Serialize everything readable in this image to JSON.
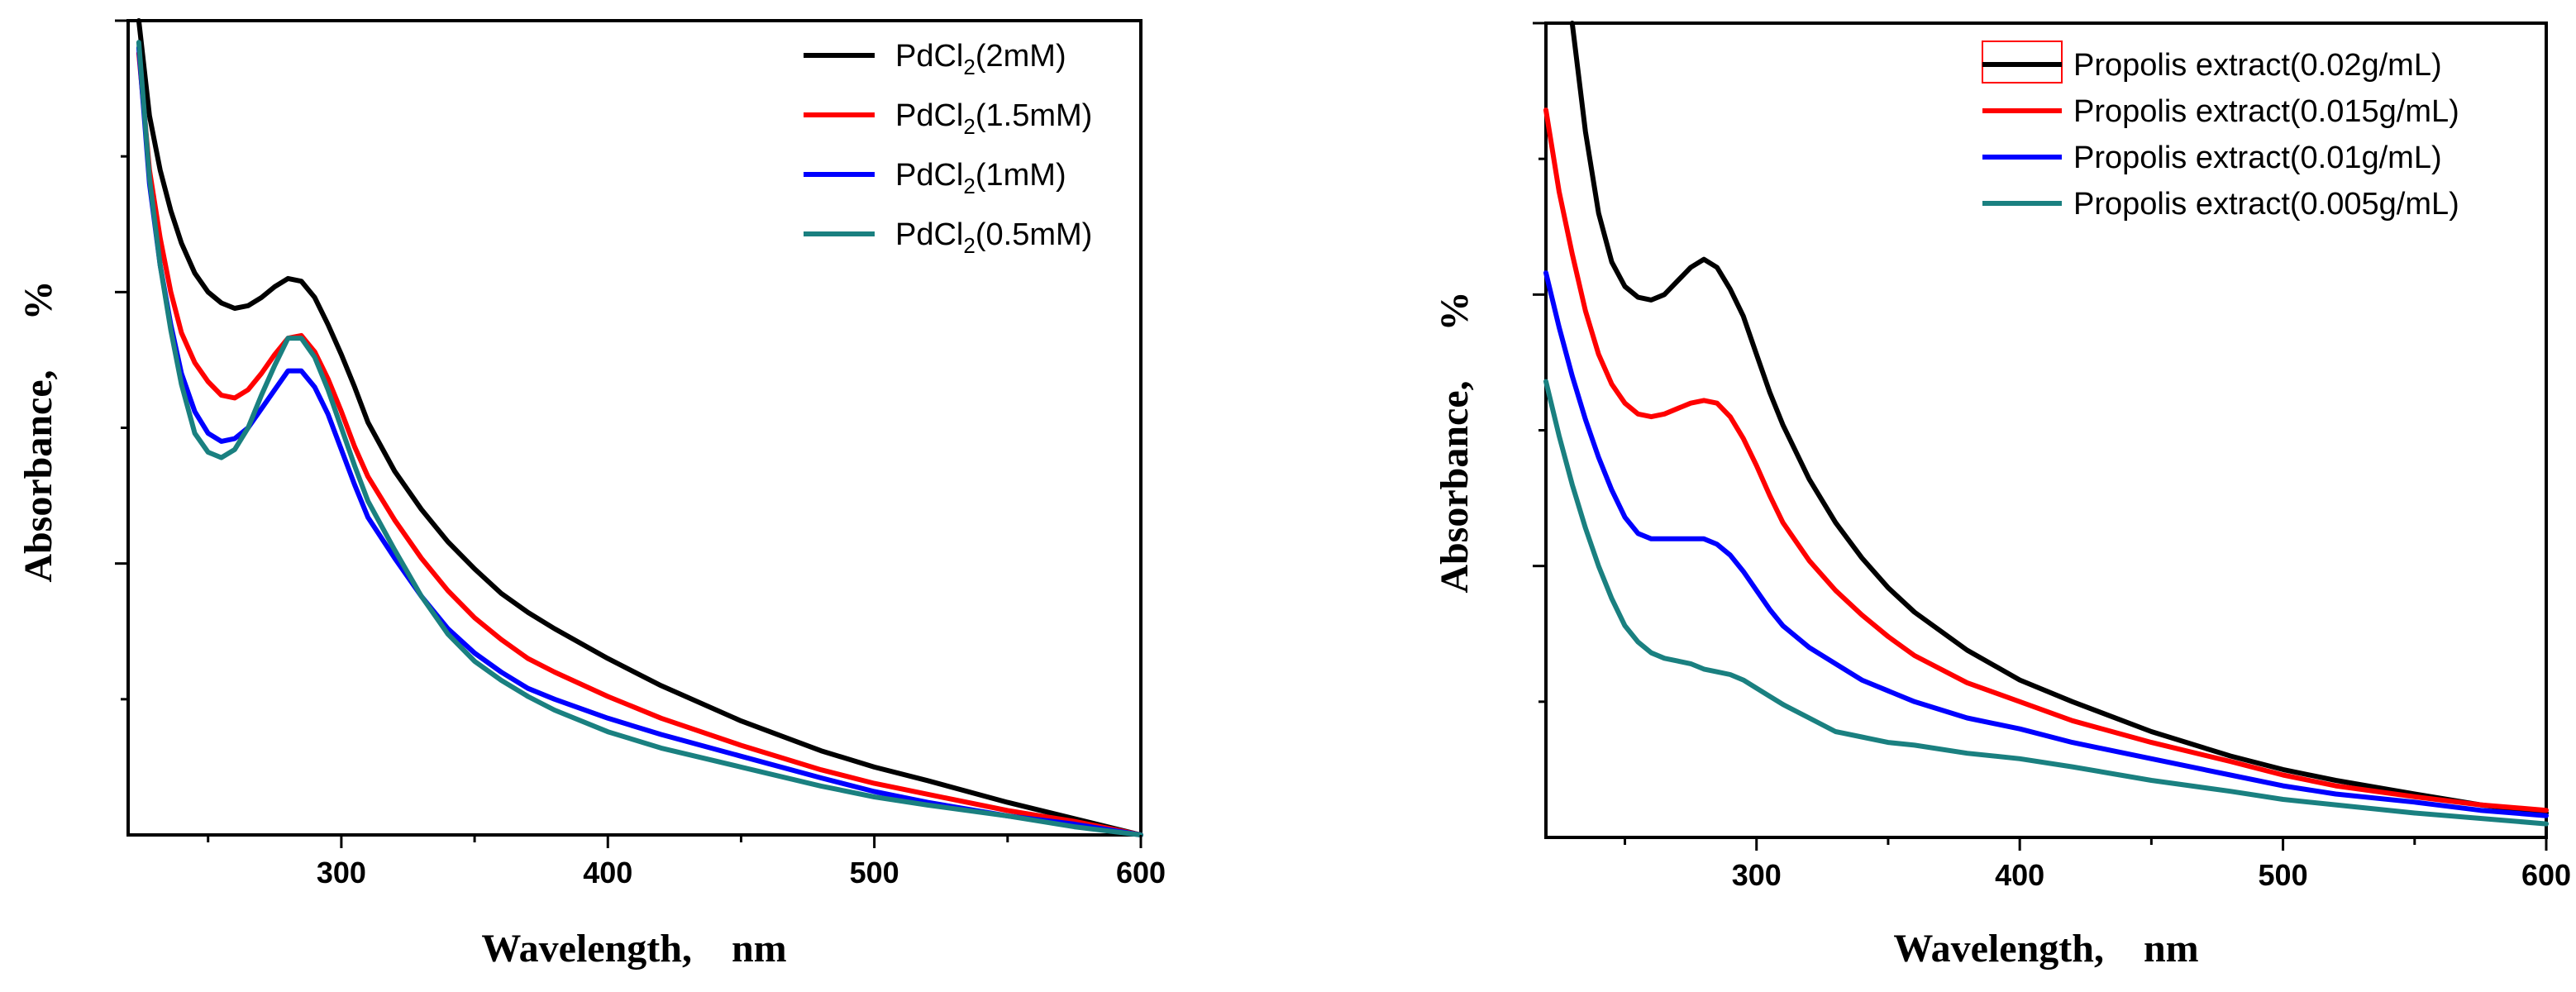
{
  "chart_data": [
    {
      "type": "line",
      "xlabel": "Wavelength,    nm",
      "ylabel": "Absorbance,     %",
      "xlim": [
        220,
        600
      ],
      "ylim": [
        0,
        3.0
      ],
      "xticks": [
        300,
        400,
        500,
        600
      ],
      "grid": false,
      "legend": "top-right",
      "series": [
        {
          "name": "PdCl2(2mM)",
          "label_main": "PdCl",
          "label_sub": "2",
          "label_tail": "(2mM)",
          "color": "#000000",
          "x": [
            224,
            228,
            232,
            236,
            240,
            245,
            250,
            255,
            260,
            265,
            270,
            275,
            280,
            285,
            290,
            295,
            300,
            305,
            310,
            320,
            330,
            340,
            350,
            360,
            370,
            380,
            400,
            420,
            450,
            480,
            500,
            520,
            550,
            575,
            600
          ],
          "y": [
            3.0,
            2.65,
            2.45,
            2.3,
            2.18,
            2.07,
            2.0,
            1.96,
            1.94,
            1.95,
            1.98,
            2.02,
            2.05,
            2.04,
            1.98,
            1.88,
            1.77,
            1.65,
            1.52,
            1.34,
            1.2,
            1.08,
            0.98,
            0.89,
            0.82,
            0.76,
            0.65,
            0.55,
            0.42,
            0.31,
            0.25,
            0.2,
            0.12,
            0.06,
            0.0
          ]
        },
        {
          "name": "PdCl2(1.5mM)",
          "label_main": "PdCl",
          "label_sub": "2",
          "label_tail": "(1.5mM)",
          "color": "#ff0000",
          "x": [
            224,
            228,
            232,
            236,
            240,
            245,
            250,
            255,
            260,
            265,
            270,
            275,
            280,
            285,
            290,
            295,
            300,
            305,
            310,
            320,
            330,
            340,
            350,
            360,
            370,
            380,
            400,
            420,
            450,
            480,
            500,
            520,
            550,
            575,
            600
          ],
          "y": [
            2.88,
            2.45,
            2.2,
            2.0,
            1.85,
            1.74,
            1.67,
            1.62,
            1.61,
            1.64,
            1.7,
            1.77,
            1.83,
            1.84,
            1.78,
            1.68,
            1.56,
            1.43,
            1.32,
            1.16,
            1.02,
            0.9,
            0.8,
            0.72,
            0.65,
            0.6,
            0.51,
            0.43,
            0.33,
            0.24,
            0.19,
            0.15,
            0.09,
            0.05,
            0.0
          ]
        },
        {
          "name": "PdCl2(1mM)",
          "label_main": "PdCl",
          "label_sub": "2",
          "label_tail": "(1mM)",
          "color": "#0000ff",
          "x": [
            224,
            228,
            232,
            236,
            240,
            245,
            250,
            255,
            260,
            265,
            270,
            275,
            280,
            285,
            290,
            295,
            300,
            305,
            310,
            320,
            330,
            340,
            350,
            360,
            370,
            380,
            400,
            420,
            450,
            480,
            500,
            520,
            550,
            575,
            600
          ],
          "y": [
            2.9,
            2.4,
            2.1,
            1.88,
            1.7,
            1.56,
            1.48,
            1.45,
            1.46,
            1.5,
            1.57,
            1.64,
            1.71,
            1.71,
            1.65,
            1.55,
            1.42,
            1.29,
            1.17,
            1.02,
            0.88,
            0.76,
            0.67,
            0.6,
            0.54,
            0.5,
            0.43,
            0.37,
            0.29,
            0.21,
            0.16,
            0.12,
            0.07,
            0.04,
            0.0
          ]
        },
        {
          "name": "PdCl2(0.5mM)",
          "label_main": "PdCl",
          "label_sub": "2",
          "label_tail": "(0.5mM)",
          "color": "#1a8080",
          "x": [
            224,
            228,
            232,
            236,
            240,
            245,
            250,
            255,
            260,
            265,
            270,
            275,
            280,
            285,
            290,
            295,
            300,
            305,
            310,
            320,
            330,
            340,
            350,
            360,
            370,
            380,
            400,
            420,
            450,
            480,
            500,
            520,
            550,
            575,
            600
          ],
          "y": [
            2.92,
            2.42,
            2.1,
            1.86,
            1.66,
            1.48,
            1.41,
            1.39,
            1.42,
            1.5,
            1.62,
            1.73,
            1.83,
            1.83,
            1.76,
            1.64,
            1.5,
            1.36,
            1.23,
            1.05,
            0.88,
            0.74,
            0.64,
            0.57,
            0.51,
            0.46,
            0.38,
            0.32,
            0.25,
            0.18,
            0.14,
            0.11,
            0.07,
            0.03,
            0.0
          ]
        }
      ]
    },
    {
      "type": "line",
      "xlabel": "Wavelength,    nm",
      "ylabel": "Absorbance,     %",
      "xlim": [
        220,
        600
      ],
      "ylim": [
        0,
        3.0
      ],
      "xticks": [
        300,
        400,
        500,
        600
      ],
      "grid": false,
      "legend": "top-right",
      "series": [
        {
          "name": "Propolis extract(0.02g/mL)",
          "label_main": "Propolis extract(0.02g/mL)",
          "label_sub": "",
          "label_tail": "",
          "color": "#000000",
          "x": [
            230,
            235,
            240,
            245,
            250,
            255,
            260,
            265,
            270,
            275,
            280,
            285,
            290,
            295,
            300,
            305,
            310,
            320,
            330,
            340,
            350,
            360,
            380,
            400,
            420,
            450,
            480,
            500,
            520,
            550,
            575,
            600
          ],
          "y": [
            3.0,
            2.6,
            2.3,
            2.12,
            2.03,
            1.99,
            1.98,
            2.0,
            2.05,
            2.1,
            2.13,
            2.1,
            2.02,
            1.92,
            1.78,
            1.64,
            1.52,
            1.32,
            1.16,
            1.03,
            0.92,
            0.83,
            0.69,
            0.58,
            0.5,
            0.39,
            0.3,
            0.25,
            0.21,
            0.16,
            0.12,
            0.09
          ]
        },
        {
          "name": "Propolis extract(0.015g/mL)",
          "label_main": "Propolis extract(0.015g/mL)",
          "label_sub": "",
          "label_tail": "",
          "color": "#ff0000",
          "x": [
            220,
            225,
            230,
            235,
            240,
            245,
            250,
            255,
            260,
            265,
            270,
            275,
            280,
            285,
            290,
            295,
            300,
            305,
            310,
            320,
            330,
            340,
            350,
            360,
            380,
            400,
            420,
            450,
            480,
            500,
            520,
            550,
            575,
            600
          ],
          "y": [
            2.68,
            2.38,
            2.15,
            1.94,
            1.78,
            1.67,
            1.6,
            1.56,
            1.55,
            1.56,
            1.58,
            1.6,
            1.61,
            1.6,
            1.55,
            1.47,
            1.37,
            1.26,
            1.16,
            1.02,
            0.91,
            0.82,
            0.74,
            0.67,
            0.57,
            0.5,
            0.43,
            0.35,
            0.28,
            0.23,
            0.19,
            0.15,
            0.12,
            0.1
          ]
        },
        {
          "name": "Propolis extract(0.01g/mL)",
          "label_main": "Propolis extract(0.01g/mL)",
          "label_sub": "",
          "label_tail": "",
          "color": "#0000ff",
          "x": [
            220,
            225,
            230,
            235,
            240,
            245,
            250,
            255,
            260,
            265,
            270,
            275,
            280,
            285,
            290,
            295,
            300,
            305,
            310,
            320,
            330,
            340,
            350,
            360,
            380,
            400,
            420,
            450,
            480,
            500,
            520,
            550,
            575,
            600
          ],
          "y": [
            2.08,
            1.88,
            1.7,
            1.54,
            1.4,
            1.28,
            1.18,
            1.12,
            1.1,
            1.1,
            1.1,
            1.1,
            1.1,
            1.08,
            1.04,
            0.98,
            0.91,
            0.84,
            0.78,
            0.7,
            0.64,
            0.58,
            0.54,
            0.5,
            0.44,
            0.4,
            0.35,
            0.29,
            0.23,
            0.19,
            0.16,
            0.13,
            0.1,
            0.08
          ]
        },
        {
          "name": "Propolis extract(0.005g/mL)",
          "label_main": "Propolis extract(0.005g/mL)",
          "label_sub": "",
          "label_tail": "",
          "color": "#1a8080",
          "x": [
            220,
            225,
            230,
            235,
            240,
            245,
            250,
            255,
            260,
            265,
            270,
            275,
            280,
            285,
            290,
            295,
            300,
            305,
            310,
            320,
            330,
            340,
            350,
            360,
            380,
            400,
            420,
            450,
            480,
            500,
            520,
            550,
            575,
            600
          ],
          "y": [
            1.68,
            1.48,
            1.3,
            1.14,
            1.0,
            0.88,
            0.78,
            0.72,
            0.68,
            0.66,
            0.65,
            0.64,
            0.62,
            0.61,
            0.6,
            0.58,
            0.55,
            0.52,
            0.49,
            0.44,
            0.39,
            0.37,
            0.35,
            0.34,
            0.31,
            0.29,
            0.26,
            0.21,
            0.17,
            0.14,
            0.12,
            0.09,
            0.07,
            0.05
          ]
        }
      ]
    }
  ]
}
